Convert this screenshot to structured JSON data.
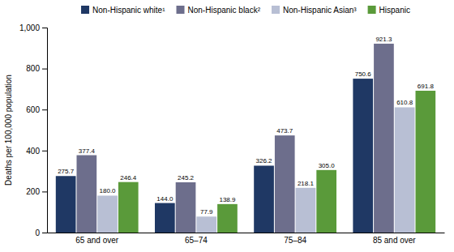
{
  "chart_data": {
    "type": "bar",
    "categories": [
      "65 and over",
      "65–74",
      "75–84",
      "85 and over"
    ],
    "series": [
      {
        "name": "Non-Hispanic white¹",
        "color": "#1f3864",
        "values": [
          275.7,
          144.0,
          326.2,
          750.6
        ],
        "value_labels": [
          "275.7",
          "144.0",
          "326.2",
          "750.6"
        ]
      },
      {
        "name": "Non-Hispanic black²",
        "color": "#6d6e8c",
        "values": [
          377.4,
          245.2,
          473.7,
          921.3
        ],
        "value_labels": [
          "377.4",
          "245.2",
          "473.7",
          "921.3"
        ]
      },
      {
        "name": "Non-Hispanic Asian³",
        "color": "#b8bfd4",
        "values": [
          180.0,
          77.9,
          218.1,
          610.8
        ],
        "value_labels": [
          "180.0",
          "77.9",
          "218.1",
          "610.8"
        ]
      },
      {
        "name": "Hispanic",
        "color": "#5a9a3a",
        "values": [
          246.4,
          138.9,
          305.0,
          691.8
        ],
        "value_labels": [
          "246.4",
          "138.9",
          "305.0",
          "691.8"
        ]
      }
    ],
    "ylabel": "Deaths per 100,000 population",
    "ylim": [
      0,
      1000
    ],
    "yticks": [
      0,
      200,
      400,
      600,
      800,
      {
        "value": 1000,
        "label": "1,000"
      }
    ],
    "grid": false,
    "legend": "top",
    "data_labels": true
  }
}
